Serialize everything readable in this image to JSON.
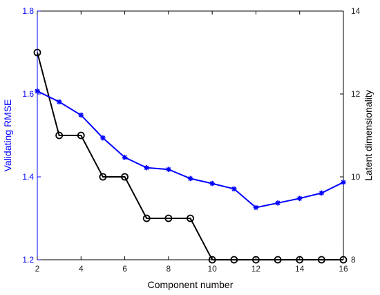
{
  "chart_data": {
    "type": "line",
    "title": "",
    "xlabel": "Component number",
    "ylabel_left": "Validating RMSE",
    "ylabel_right": "Latent dimensionality",
    "xlim": [
      2,
      16
    ],
    "ylim_left": [
      1.2,
      1.8
    ],
    "ylim_right": [
      8,
      14
    ],
    "x_ticks": [
      "2",
      "4",
      "6",
      "8",
      "10",
      "12",
      "14",
      "16"
    ],
    "y_ticks_left": [
      "1.2",
      "1.4",
      "1.6",
      "1.8"
    ],
    "y_ticks_right": [
      "8",
      "10",
      "12",
      "14"
    ],
    "grid": false,
    "legend": "none",
    "series": [
      {
        "axis": "left",
        "color": "#0000ff",
        "marker": "asterisk",
        "x": [
          2,
          3,
          4,
          5,
          6,
          7,
          8,
          9,
          10,
          11,
          12,
          13,
          14,
          15,
          16
        ],
        "y": [
          1.607,
          1.581,
          1.549,
          1.494,
          1.447,
          1.422,
          1.418,
          1.396,
          1.384,
          1.371,
          1.326,
          1.337,
          1.348,
          1.361,
          1.387
        ]
      },
      {
        "axis": "right",
        "color": "#000000",
        "marker": "circle",
        "x": [
          2,
          3,
          4,
          5,
          6,
          7,
          8,
          9,
          10,
          11,
          12,
          13,
          14,
          15,
          16
        ],
        "y": [
          13,
          11,
          11,
          10,
          10,
          9,
          9,
          9,
          8,
          8,
          8,
          8,
          8,
          8,
          8
        ]
      }
    ]
  }
}
